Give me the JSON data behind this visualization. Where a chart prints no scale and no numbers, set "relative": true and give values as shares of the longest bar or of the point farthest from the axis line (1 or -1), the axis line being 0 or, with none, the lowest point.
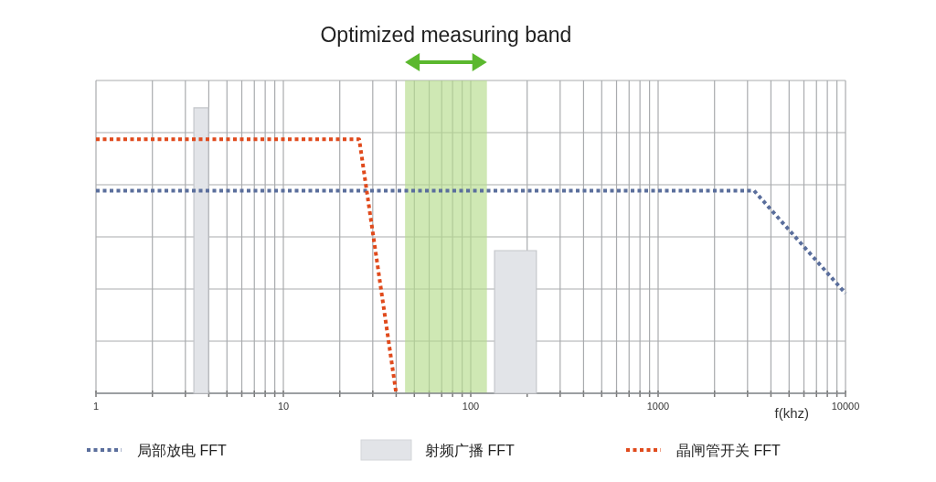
{
  "chart_data": {
    "type": "line",
    "relative": true,
    "log": "x",
    "xlabel": "f(khz)",
    "grid": true,
    "legend": "bottom",
    "line_style": "dotted",
    "xlim": [
      1,
      10000
    ],
    "xticks": [
      1,
      {
        "value": 2,
        "label": null
      },
      {
        "value": 3,
        "label": null
      },
      {
        "value": 4,
        "label": null
      },
      {
        "value": 5,
        "label": null
      },
      {
        "value": 6,
        "label": null
      },
      {
        "value": 7,
        "label": null
      },
      {
        "value": 8,
        "label": null
      },
      {
        "value": 9,
        "label": null
      },
      10,
      {
        "value": 20,
        "label": null
      },
      {
        "value": 30,
        "label": null
      },
      {
        "value": 40,
        "label": null
      },
      {
        "value": 50,
        "label": null
      },
      {
        "value": 60,
        "label": null
      },
      {
        "value": 70,
        "label": null
      },
      {
        "value": 80,
        "label": null
      },
      {
        "value": 90,
        "label": null
      },
      100,
      {
        "value": 200,
        "label": null
      },
      {
        "value": 300,
        "label": null
      },
      {
        "value": 400,
        "label": null
      },
      {
        "value": 500,
        "label": null
      },
      {
        "value": 600,
        "label": null
      },
      {
        "value": 700,
        "label": null
      },
      {
        "value": 800,
        "label": null
      },
      {
        "value": 900,
        "label": null
      },
      1000,
      {
        "value": 2000,
        "label": null
      },
      {
        "value": 3000,
        "label": null
      },
      {
        "value": 4000,
        "label": null
      },
      {
        "value": 5000,
        "label": null
      },
      {
        "value": 6000,
        "label": null
      },
      {
        "value": 7000,
        "label": null
      },
      {
        "value": 8000,
        "label": null
      },
      {
        "value": 9000,
        "label": null
      },
      10000
    ],
    "bands": [
      {
        "axis": "x",
        "from": 44.6,
        "to": 122,
        "label": "Optimized measuring band",
        "color": "#b5dc8c"
      }
    ],
    "series": [
      {
        "name": "局部放电 FFT",
        "color": "#5a6e9c",
        "x": [
          1,
          3250,
          10000
        ],
        "values": [
          0.71,
          0.71,
          0.35
        ]
      },
      {
        "name": "射频广播 FFT",
        "type": "area",
        "color": "#e2e4e8",
        "x": [
          3.33,
          3.33,
          3.98,
          3.98
        ],
        "values": [
          0,
          1,
          1,
          0
        ]
      },
      {
        "type": "area",
        "color": "#e2e4e8",
        "x": [
          134,
          134,
          224,
          224
        ],
        "values": [
          0,
          0.5,
          0.5,
          0
        ]
      },
      {
        "name": "晶闸管开关 FFT",
        "color": "#e04a1c",
        "x": [
          1,
          25.4,
          40
        ],
        "values": [
          0.89,
          0.89,
          0
        ]
      }
    ]
  }
}
